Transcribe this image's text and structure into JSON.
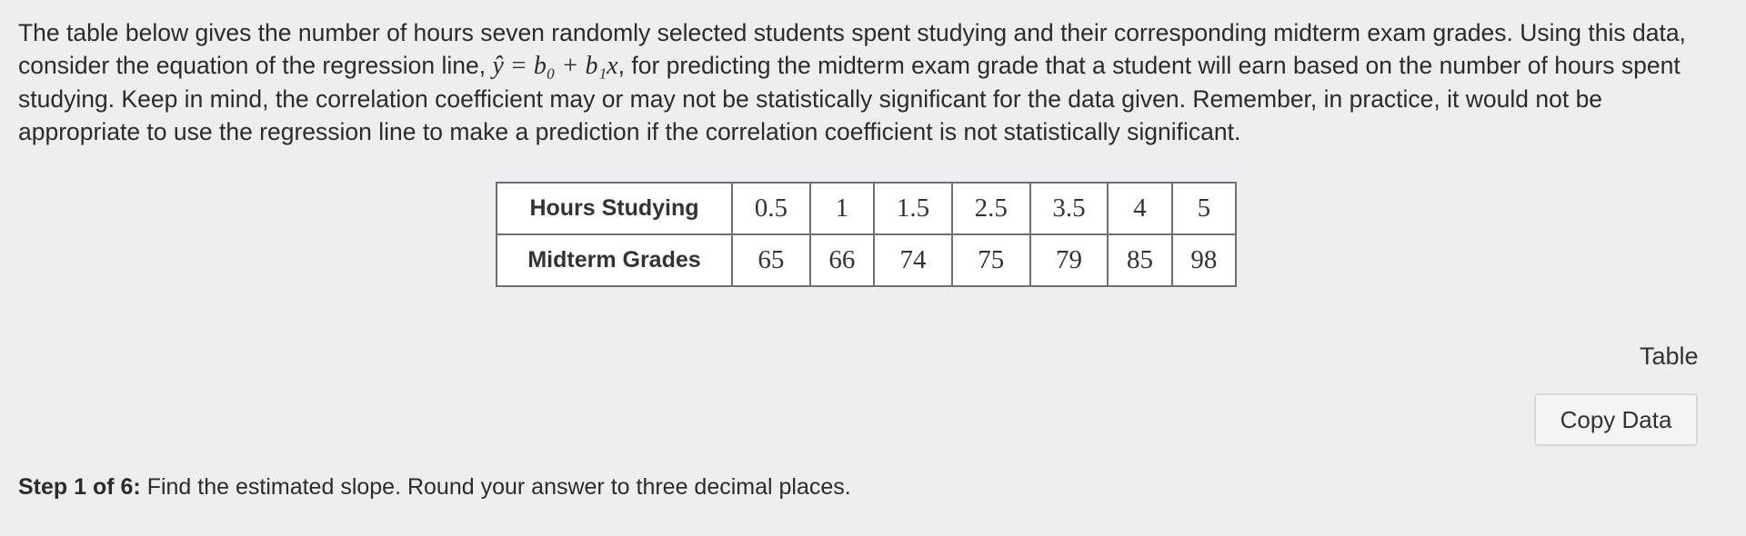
{
  "problem": {
    "text_before": "The table below gives the number of hours seven randomly selected students spent studying and their corresponding midterm exam grades. Using this data, consider the equation of the regression line, ",
    "equation": "ŷ = b₀ + b₁x",
    "text_after": ", for predicting the midterm exam grade that a student will earn based on the number of hours spent studying. Keep in mind, the correlation coefficient may or may not be statistically significant for the data given. Remember, in practice, it would not be appropriate to use the regression line to make a prediction if the correlation coefficient is not statistically significant."
  },
  "table": {
    "rows": [
      {
        "label": "Hours Studying",
        "values": [
          0.5,
          1,
          1.5,
          2.5,
          3.5,
          4,
          5
        ]
      },
      {
        "label": "Midterm Grades",
        "values": [
          65,
          66,
          74,
          75,
          79,
          85,
          98
        ]
      }
    ]
  },
  "links": {
    "table": "Table",
    "copy_data": "Copy Data"
  },
  "step": {
    "label": "Step 1 of 6:",
    "text": "Find the estimated slope. Round your answer to three decimal places."
  }
}
